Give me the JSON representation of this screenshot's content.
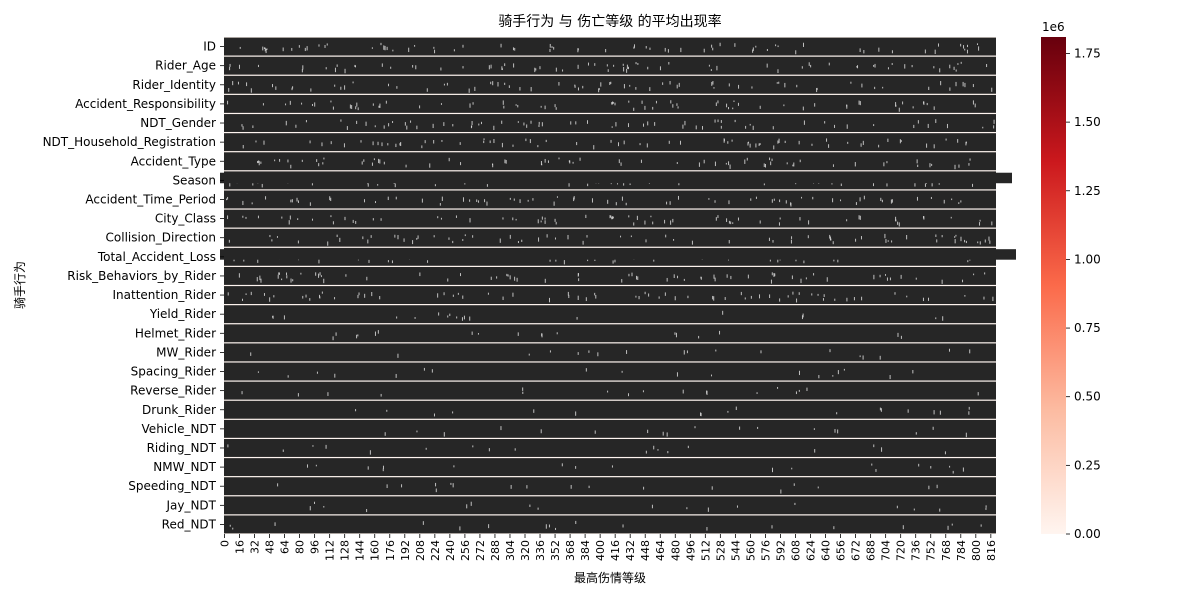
{
  "chart_data": {
    "type": "heatmap",
    "title": "骑手行为 与 伤亡等级 的平均出现率",
    "xlabel": "最高伤情等级",
    "ylabel": "骑手行为",
    "row_labels": [
      "ID",
      "Rider_Age",
      "Rider_Identity",
      "Accident_Responsibility",
      "NDT_Gender",
      "NDT_Household_Registration",
      "Accident_Type",
      "Season",
      "Accident_Time_Period",
      "City_Class",
      "Collision_Direction",
      "Total_Accident_Loss",
      "Risk_Behaviors_by_Rider",
      "Inattention_Rider",
      "Yield_Rider",
      "Helmet_Rider",
      "MW_Rider",
      "Spacing_Rider",
      "Reverse_Rider",
      "Drunk_Rider",
      "Vehicle_NDT",
      "Riding_NDT",
      "NMW_NDT",
      "Speeding_NDT",
      "Jay_NDT",
      "Red_NDT"
    ],
    "x_tick_labels": [
      "0",
      "16",
      "32",
      "48",
      "64",
      "80",
      "96",
      "112",
      "128",
      "144",
      "160",
      "176",
      "192",
      "208",
      "224",
      "240",
      "256",
      "272",
      "288",
      "304",
      "320",
      "336",
      "352",
      "368",
      "384",
      "400",
      "416",
      "432",
      "448",
      "464",
      "480",
      "496",
      "512",
      "528",
      "544",
      "560",
      "576",
      "592",
      "608",
      "624",
      "640",
      "656",
      "672",
      "688",
      "704",
      "720",
      "736",
      "752",
      "768",
      "784",
      "800",
      "816"
    ],
    "annotation_color": "#262626",
    "colorbar": {
      "ticks": [
        "0.00",
        "0.25",
        "0.50",
        "0.75",
        "1.00",
        "1.25",
        "1.50",
        "1.75"
      ],
      "tick_values": [
        0,
        0.25,
        0.5,
        0.75,
        1.0,
        1.25,
        1.5,
        1.75
      ],
      "max": 1.81,
      "multiplier": "1e6",
      "color_low": "#fff5f0",
      "color_mid": "#fb6a4a",
      "color_high": "#67000d"
    }
  }
}
